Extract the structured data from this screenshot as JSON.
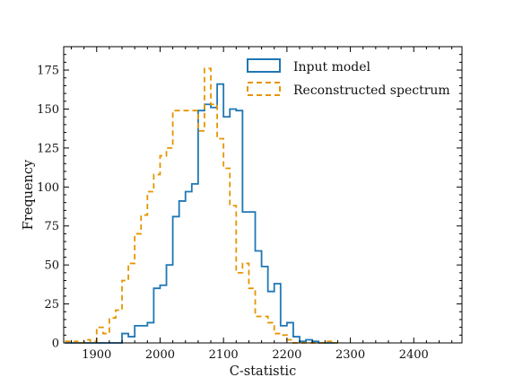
{
  "chart_data": {
    "type": "histogram",
    "xlabel": "C-statistic",
    "ylabel": "Frequency",
    "xlim": [
      1848,
      2476
    ],
    "ylim": [
      0,
      190
    ],
    "x_ticks": [
      1900,
      2000,
      2100,
      2200,
      2300,
      2400
    ],
    "y_ticks": [
      0,
      25,
      50,
      75,
      100,
      125,
      150,
      175
    ],
    "bin_width": 10,
    "legend_position": "top-right",
    "series": [
      {
        "name": "Input model",
        "color": "#1f77b4",
        "linestyle": "solid",
        "bin_start": 1850,
        "values": [
          0,
          0,
          0,
          0,
          0,
          0,
          0,
          0,
          0,
          6,
          4,
          11,
          11,
          13,
          35,
          37,
          50,
          81,
          91,
          97,
          102,
          149,
          153,
          151,
          166,
          145,
          150,
          149,
          84,
          84,
          59,
          49,
          33,
          38,
          11,
          13,
          4,
          1,
          2,
          1,
          0,
          0,
          0
        ]
      },
      {
        "name": "Reconstructed spectrum",
        "color": "#e69500",
        "linestyle": "dashed",
        "bin_start": 1850,
        "values": [
          1,
          1,
          0,
          2,
          1,
          10,
          6,
          16,
          21,
          40,
          51,
          70,
          82,
          97,
          108,
          120,
          125,
          149,
          149,
          149,
          149,
          136,
          176,
          153,
          131,
          112,
          88,
          45,
          51,
          35,
          17,
          17,
          13,
          6,
          5,
          2,
          0,
          0,
          0,
          0,
          0,
          1,
          0
        ]
      }
    ]
  }
}
